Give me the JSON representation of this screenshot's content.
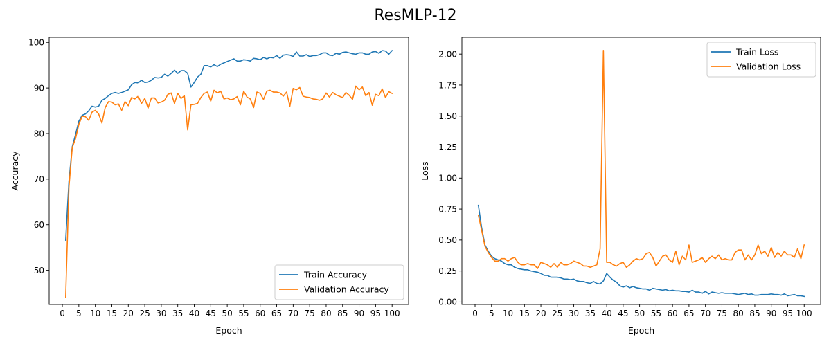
{
  "figure": {
    "suptitle": "ResMLP-12"
  },
  "colors": {
    "train": "#1f77b4",
    "validation": "#ff7f0e"
  },
  "chart_data": [
    {
      "type": "line",
      "xlabel": "Epoch",
      "ylabel": "Accuracy",
      "xlim": [
        -4,
        105
      ],
      "ylim": [
        42.5,
        101.1
      ],
      "xticks": [
        0,
        5,
        10,
        15,
        20,
        25,
        30,
        35,
        40,
        45,
        50,
        55,
        60,
        65,
        70,
        75,
        80,
        85,
        90,
        95,
        100
      ],
      "yticks": [
        50,
        60,
        70,
        80,
        90,
        100
      ],
      "ytick_labels": [
        "50",
        "60",
        "70",
        "80",
        "90",
        "100"
      ],
      "legend": "lower-right",
      "series": [
        {
          "name": "Train Accuracy",
          "color": "#1f77b4",
          "x": [
            1,
            2,
            3,
            4,
            5,
            6,
            7,
            8,
            9,
            10,
            11,
            12,
            13,
            14,
            15,
            16,
            17,
            18,
            19,
            20,
            21,
            22,
            23,
            24,
            25,
            26,
            27,
            28,
            29,
            30,
            31,
            32,
            33,
            34,
            35,
            36,
            37,
            38,
            39,
            40,
            41,
            42,
            43,
            44,
            45,
            46,
            47,
            48,
            49,
            50,
            51,
            52,
            53,
            54,
            55,
            56,
            57,
            58,
            59,
            60,
            61,
            62,
            63,
            64,
            65,
            66,
            67,
            68,
            69,
            70,
            71,
            72,
            73,
            74,
            75,
            76,
            77,
            78,
            79,
            80,
            81,
            82,
            83,
            84,
            85,
            86,
            87,
            88,
            89,
            90,
            91,
            92,
            93,
            94,
            95,
            96,
            97,
            98,
            99,
            100
          ],
          "values": [
            56.6,
            69.5,
            77.1,
            79.8,
            82.7,
            84.0,
            84.3,
            85.0,
            86.0,
            85.8,
            86.0,
            87.3,
            87.7,
            88.3,
            88.8,
            89.0,
            88.8,
            89.0,
            89.3,
            89.6,
            90.7,
            91.2,
            91.1,
            91.7,
            91.2,
            91.3,
            91.7,
            92.3,
            92.2,
            92.3,
            93.0,
            92.6,
            93.2,
            93.9,
            93.2,
            93.8,
            93.8,
            93.2,
            90.2,
            91.2,
            92.4,
            93.0,
            94.9,
            94.9,
            94.6,
            95.1,
            94.7,
            95.2,
            95.5,
            95.8,
            96.1,
            96.4,
            95.9,
            95.9,
            96.2,
            96.1,
            95.9,
            96.5,
            96.4,
            96.2,
            96.7,
            96.4,
            96.7,
            96.6,
            97.1,
            96.5,
            97.2,
            97.3,
            97.2,
            96.9,
            97.9,
            97.0,
            97.0,
            97.3,
            96.9,
            97.1,
            97.1,
            97.3,
            97.7,
            97.7,
            97.2,
            97.1,
            97.6,
            97.4,
            97.8,
            97.9,
            97.7,
            97.5,
            97.4,
            97.7,
            97.7,
            97.4,
            97.4,
            97.9,
            98.0,
            97.6,
            98.2,
            98.1,
            97.4,
            98.2
          ]
        },
        {
          "name": "Validation Accuracy",
          "color": "#ff7f0e",
          "x": [
            1,
            2,
            3,
            4,
            5,
            6,
            7,
            8,
            9,
            10,
            11,
            12,
            13,
            14,
            15,
            16,
            17,
            18,
            19,
            20,
            21,
            22,
            23,
            24,
            25,
            26,
            27,
            28,
            29,
            30,
            31,
            32,
            33,
            34,
            35,
            36,
            37,
            38,
            39,
            40,
            41,
            42,
            43,
            44,
            45,
            46,
            47,
            48,
            49,
            50,
            51,
            52,
            53,
            54,
            55,
            56,
            57,
            58,
            59,
            60,
            61,
            62,
            63,
            64,
            65,
            66,
            67,
            68,
            69,
            70,
            71,
            72,
            73,
            74,
            75,
            76,
            77,
            78,
            79,
            80,
            81,
            82,
            83,
            84,
            85,
            86,
            87,
            88,
            89,
            90,
            91,
            92,
            93,
            94,
            95,
            96,
            97,
            98,
            99,
            100
          ],
          "values": [
            44.1,
            68.2,
            76.9,
            78.9,
            82.0,
            83.8,
            83.7,
            82.9,
            84.7,
            85.1,
            84.3,
            82.3,
            85.7,
            87.0,
            86.9,
            86.3,
            86.5,
            85.1,
            87.0,
            86.1,
            87.9,
            87.6,
            88.2,
            86.6,
            87.7,
            85.6,
            87.8,
            87.8,
            86.7,
            86.9,
            87.3,
            88.6,
            88.9,
            86.6,
            88.8,
            87.7,
            88.3,
            80.8,
            86.3,
            86.4,
            86.6,
            87.9,
            88.8,
            89.1,
            87.1,
            89.5,
            88.9,
            89.3,
            87.6,
            87.8,
            87.4,
            87.6,
            88.1,
            86.3,
            89.3,
            88.0,
            87.6,
            85.7,
            89.1,
            88.8,
            87.5,
            89.3,
            89.5,
            89.1,
            89.1,
            88.9,
            88.2,
            89.1,
            86.0,
            89.9,
            89.6,
            90.1,
            88.2,
            88.0,
            87.9,
            87.6,
            87.5,
            87.3,
            87.6,
            88.9,
            88.0,
            89.0,
            88.5,
            88.2,
            87.9,
            89.0,
            88.4,
            87.5,
            90.4,
            89.6,
            90.2,
            88.3,
            89.0,
            86.2,
            88.6,
            88.3,
            89.8,
            87.9,
            89.2,
            88.8
          ]
        }
      ]
    },
    {
      "type": "line",
      "xlabel": "Epoch",
      "ylabel": "Loss",
      "xlim": [
        -4,
        105
      ],
      "ylim": [
        -0.02,
        2.135
      ],
      "xticks": [
        0,
        5,
        10,
        15,
        20,
        25,
        30,
        35,
        40,
        45,
        50,
        55,
        60,
        65,
        70,
        75,
        80,
        85,
        90,
        95,
        100
      ],
      "yticks": [
        0.0,
        0.25,
        0.5,
        0.75,
        1.0,
        1.25,
        1.5,
        1.75,
        2.0
      ],
      "ytick_labels": [
        "0.00",
        "0.25",
        "0.50",
        "0.75",
        "1.00",
        "1.25",
        "1.50",
        "1.75",
        "2.00"
      ],
      "legend": "top-right",
      "series": [
        {
          "name": "Train Loss",
          "color": "#1f77b4",
          "x": [
            1,
            2,
            3,
            4,
            5,
            6,
            7,
            8,
            9,
            10,
            11,
            12,
            13,
            14,
            15,
            16,
            17,
            18,
            19,
            20,
            21,
            22,
            23,
            24,
            25,
            26,
            27,
            28,
            29,
            30,
            31,
            32,
            33,
            34,
            35,
            36,
            37,
            38,
            39,
            40,
            41,
            42,
            43,
            44,
            45,
            46,
            47,
            48,
            49,
            50,
            51,
            52,
            53,
            54,
            55,
            56,
            57,
            58,
            59,
            60,
            61,
            62,
            63,
            64,
            65,
            66,
            67,
            68,
            69,
            70,
            71,
            72,
            73,
            74,
            75,
            76,
            77,
            78,
            79,
            80,
            81,
            82,
            83,
            84,
            85,
            86,
            87,
            88,
            89,
            90,
            91,
            92,
            93,
            94,
            95,
            96,
            97,
            98,
            99,
            100
          ],
          "values": [
            0.78,
            0.6,
            0.46,
            0.41,
            0.37,
            0.35,
            0.34,
            0.33,
            0.31,
            0.3,
            0.3,
            0.28,
            0.27,
            0.265,
            0.26,
            0.26,
            0.25,
            0.245,
            0.24,
            0.23,
            0.215,
            0.215,
            0.2,
            0.2,
            0.2,
            0.195,
            0.185,
            0.185,
            0.18,
            0.185,
            0.17,
            0.165,
            0.165,
            0.155,
            0.15,
            0.165,
            0.15,
            0.145,
            0.17,
            0.23,
            0.2,
            0.175,
            0.16,
            0.13,
            0.12,
            0.13,
            0.115,
            0.125,
            0.115,
            0.11,
            0.105,
            0.105,
            0.095,
            0.11,
            0.105,
            0.1,
            0.095,
            0.1,
            0.09,
            0.095,
            0.09,
            0.09,
            0.085,
            0.085,
            0.08,
            0.095,
            0.08,
            0.08,
            0.07,
            0.085,
            0.065,
            0.08,
            0.075,
            0.07,
            0.075,
            0.07,
            0.07,
            0.07,
            0.065,
            0.06,
            0.065,
            0.07,
            0.06,
            0.065,
            0.055,
            0.055,
            0.06,
            0.06,
            0.06,
            0.065,
            0.06,
            0.06,
            0.055,
            0.065,
            0.05,
            0.055,
            0.06,
            0.05,
            0.05,
            0.045
          ]
        },
        {
          "name": "Validation Loss",
          "color": "#ff7f0e",
          "x": [
            1,
            2,
            3,
            4,
            5,
            6,
            7,
            8,
            9,
            10,
            11,
            12,
            13,
            14,
            15,
            16,
            17,
            18,
            19,
            20,
            21,
            22,
            23,
            24,
            25,
            26,
            27,
            28,
            29,
            30,
            31,
            32,
            33,
            34,
            35,
            36,
            37,
            38,
            39,
            40,
            41,
            42,
            43,
            44,
            45,
            46,
            47,
            48,
            49,
            50,
            51,
            52,
            53,
            54,
            55,
            56,
            57,
            58,
            59,
            60,
            61,
            62,
            63,
            64,
            65,
            66,
            67,
            68,
            69,
            70,
            71,
            72,
            73,
            74,
            75,
            76,
            77,
            78,
            79,
            80,
            81,
            82,
            83,
            84,
            85,
            86,
            87,
            88,
            89,
            90,
            91,
            92,
            93,
            94,
            95,
            96,
            97,
            98,
            99,
            100
          ],
          "values": [
            0.7,
            0.58,
            0.45,
            0.4,
            0.36,
            0.33,
            0.33,
            0.35,
            0.35,
            0.33,
            0.35,
            0.36,
            0.32,
            0.3,
            0.3,
            0.31,
            0.3,
            0.3,
            0.27,
            0.32,
            0.31,
            0.3,
            0.28,
            0.31,
            0.28,
            0.32,
            0.3,
            0.3,
            0.31,
            0.33,
            0.32,
            0.31,
            0.29,
            0.29,
            0.28,
            0.29,
            0.3,
            0.43,
            2.03,
            0.32,
            0.32,
            0.3,
            0.29,
            0.31,
            0.32,
            0.28,
            0.3,
            0.33,
            0.35,
            0.34,
            0.35,
            0.39,
            0.4,
            0.36,
            0.29,
            0.33,
            0.37,
            0.38,
            0.34,
            0.32,
            0.41,
            0.3,
            0.37,
            0.34,
            0.46,
            0.32,
            0.33,
            0.34,
            0.36,
            0.32,
            0.35,
            0.37,
            0.35,
            0.38,
            0.34,
            0.35,
            0.34,
            0.34,
            0.4,
            0.42,
            0.42,
            0.34,
            0.38,
            0.34,
            0.38,
            0.46,
            0.39,
            0.41,
            0.37,
            0.44,
            0.36,
            0.4,
            0.37,
            0.41,
            0.38,
            0.38,
            0.36,
            0.43,
            0.35,
            0.46
          ]
        }
      ]
    }
  ]
}
